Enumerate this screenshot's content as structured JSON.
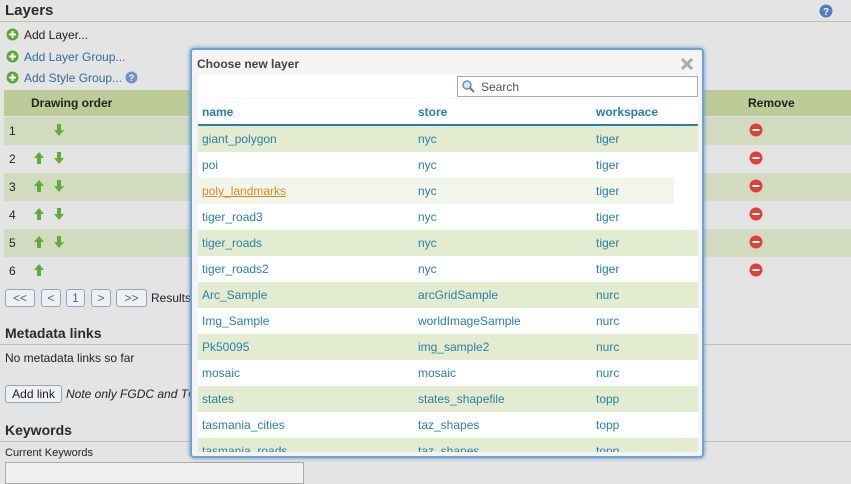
{
  "header": {
    "title": "Layers"
  },
  "actions": [
    "Add Layer...",
    "Add Layer Group...",
    "Add Style Group..."
  ],
  "layers_table": {
    "columns": [
      "Drawing order",
      "Remove"
    ],
    "rows": [
      1,
      2,
      3,
      4,
      5,
      6
    ]
  },
  "pager": {
    "buttons": [
      "<<",
      "<",
      "1",
      ">",
      ">>"
    ],
    "results": "Results"
  },
  "metadata": {
    "title": "Metadata links",
    "empty": "No metadata links so far",
    "button": "Add link",
    "note": "Note only FGDC and TC"
  },
  "keywords": {
    "title": "Keywords",
    "label": "Current Keywords"
  },
  "dialog": {
    "title": "Choose new layer",
    "search_placeholder": "Search",
    "columns": [
      "name",
      "store",
      "workspace"
    ],
    "rows": [
      [
        "giant_polygon",
        "nyc",
        "tiger"
      ],
      [
        "poi",
        "nyc",
        "tiger"
      ],
      [
        "poly_landmarks",
        "nyc",
        "tiger"
      ],
      [
        "tiger_road3",
        "nyc",
        "tiger"
      ],
      [
        "tiger_roads",
        "nyc",
        "tiger"
      ],
      [
        "tiger_roads2",
        "nyc",
        "tiger"
      ],
      [
        "Arc_Sample",
        "arcGridSample",
        "nurc"
      ],
      [
        "Img_Sample",
        "worldImageSample",
        "nurc"
      ],
      [
        "Pk50095",
        "img_sample2",
        "nurc"
      ],
      [
        "mosaic",
        "mosaic",
        "nurc"
      ],
      [
        "states",
        "states_shapefile",
        "topp"
      ],
      [
        "tasmania_cities",
        "taz_shapes",
        "topp"
      ],
      [
        "tasmania_roads",
        "taz_shapes",
        "topp"
      ]
    ]
  }
}
